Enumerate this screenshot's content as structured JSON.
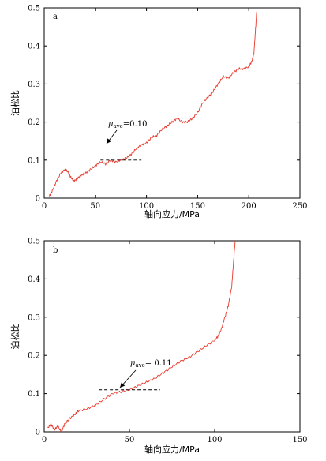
{
  "chart_data": [
    {
      "type": "line",
      "panel_label": "a",
      "xlabel": "轴向应力/MPa",
      "ylabel": "泊松比",
      "xlim": [
        0,
        250
      ],
      "ylim": [
        0,
        0.5
      ],
      "xticks": [
        "0",
        "50",
        "100",
        "150",
        "200",
        "250"
      ],
      "yticks": [
        "0",
        "0.1",
        "0.2",
        "0.3",
        "0.4",
        "0.5"
      ],
      "grid": false,
      "line_color": "#e8382c",
      "series": [
        {
          "x": [
            5,
            8,
            12,
            16,
            20,
            23,
            26,
            29,
            32,
            36,
            40,
            45,
            50,
            55,
            60,
            65,
            70,
            75,
            80,
            85,
            90,
            95,
            100,
            105,
            110,
            115,
            120,
            125,
            130,
            135,
            140,
            145,
            150,
            155,
            160,
            165,
            170,
            175,
            180,
            185,
            190,
            195,
            200,
            203,
            205,
            206,
            207,
            208
          ],
          "y": [
            0.005,
            0.02,
            0.045,
            0.065,
            0.075,
            0.07,
            0.055,
            0.045,
            0.05,
            0.06,
            0.065,
            0.075,
            0.085,
            0.095,
            0.09,
            0.1,
            0.095,
            0.1,
            0.105,
            0.115,
            0.13,
            0.14,
            0.145,
            0.16,
            0.165,
            0.18,
            0.19,
            0.2,
            0.21,
            0.2,
            0.2,
            0.21,
            0.225,
            0.25,
            0.265,
            0.28,
            0.3,
            0.32,
            0.315,
            0.33,
            0.34,
            0.34,
            0.345,
            0.36,
            0.38,
            0.42,
            0.46,
            0.5
          ]
        }
      ],
      "annotation": {
        "symbol": "μ",
        "subscript": "ave",
        "text": "=0.10",
        "value": 0.1,
        "x_range": [
          55,
          95
        ]
      }
    },
    {
      "type": "line",
      "panel_label": "b",
      "xlabel": "轴向应力/MPa",
      "ylabel": "泊松比",
      "xlim": [
        0,
        150
      ],
      "ylim": [
        0,
        0.5
      ],
      "xticks": [
        "0",
        "50",
        "100",
        "150"
      ],
      "yticks": [
        "0",
        "0.1",
        "0.2",
        "0.3",
        "0.4",
        "0.5"
      ],
      "grid": false,
      "line_color": "#e8382c",
      "series": [
        {
          "x": [
            2,
            4,
            6,
            8,
            10,
            12,
            15,
            18,
            20,
            25,
            30,
            35,
            40,
            45,
            50,
            55,
            60,
            65,
            70,
            75,
            80,
            85,
            90,
            95,
            100,
            102,
            104,
            106,
            108,
            110,
            111,
            112
          ],
          "y": [
            0.01,
            0.02,
            0.005,
            0.015,
            0.0,
            0.02,
            0.035,
            0.045,
            0.055,
            0.06,
            0.07,
            0.085,
            0.1,
            0.105,
            0.11,
            0.12,
            0.13,
            0.14,
            0.155,
            0.17,
            0.185,
            0.195,
            0.21,
            0.225,
            0.24,
            0.25,
            0.27,
            0.3,
            0.33,
            0.38,
            0.44,
            0.5
          ]
        }
      ],
      "annotation": {
        "symbol": "μ",
        "subscript": "ave",
        "text": "= 0.11",
        "value": 0.11,
        "x_range": [
          32,
          68
        ]
      }
    }
  ]
}
